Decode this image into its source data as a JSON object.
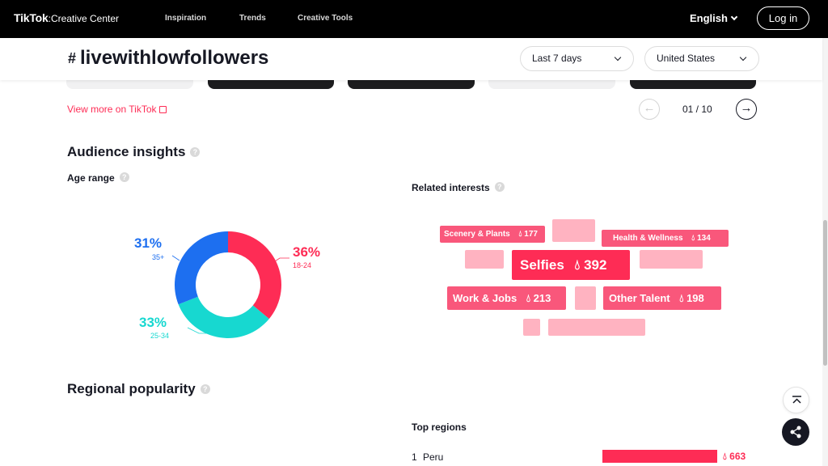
{
  "nav": {
    "brand_tiktok": "TikTok",
    "brand_sep": ":",
    "brand_suffix": "Creative Center",
    "links": [
      "Inspiration",
      "Trends",
      "Creative Tools"
    ],
    "language": "English",
    "login": "Log in"
  },
  "header": {
    "hash": "#",
    "title": "livewithlowfollowers",
    "period": "Last 7 days",
    "country": "United States"
  },
  "carousel": {
    "view_more": "View more on TikTok",
    "page": "01 / 10",
    "prev_icon": "arrow-left-icon",
    "next_icon": "arrow-right-icon"
  },
  "audience": {
    "title": "Audience insights",
    "age_title": "Age range",
    "segments": [
      {
        "pct": "36%",
        "label": "18-24",
        "value": 36,
        "color": "#fe2c55"
      },
      {
        "pct": "33%",
        "label": "25-34",
        "value": 33,
        "color": "#17d8d0"
      },
      {
        "pct": "31%",
        "label": "35+",
        "value": 31,
        "color": "#1d6ff0"
      }
    ]
  },
  "interests": {
    "title": "Related interests",
    "tags": [
      {
        "name": "Scenery & Plants",
        "count": "177"
      },
      {
        "name": "Health & Wellness",
        "count": "134"
      },
      {
        "name": "Selfies",
        "count": "392"
      },
      {
        "name": "Work & Jobs",
        "count": "213"
      },
      {
        "name": "Other Talent",
        "count": "198"
      }
    ]
  },
  "regional": {
    "title": "Regional popularity",
    "top_title": "Top regions",
    "regions": [
      {
        "rank": "1",
        "name": "Peru",
        "value": "663",
        "fraction": 1.0
      }
    ]
  },
  "colors": {
    "accent": "#fe2c55",
    "teal": "#17d8d0",
    "blue": "#1d6ff0",
    "tag_pink": "#f9577b",
    "placeholder_pink": "#ffb3c1"
  }
}
